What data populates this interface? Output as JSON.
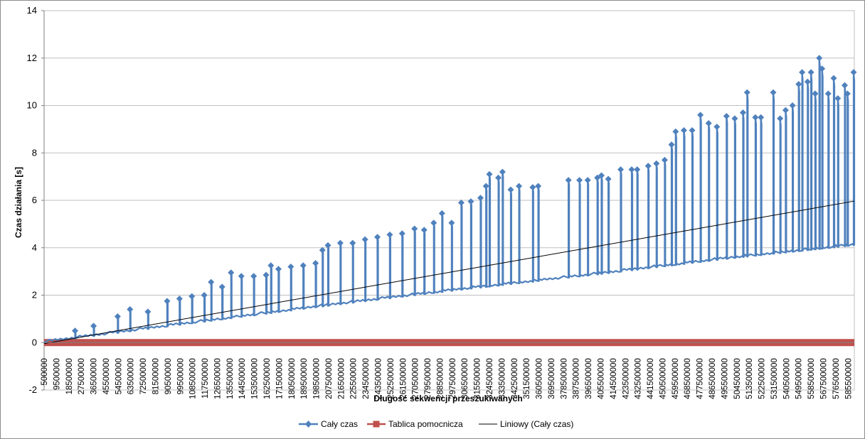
{
  "chart_data": {
    "type": "line",
    "xlabel": "Długość sekwencji przeszukiwanych",
    "ylabel": "Czas działania [s]",
    "ylim": [
      -2,
      14
    ],
    "yticks": [
      -2,
      0,
      2,
      4,
      6,
      8,
      10,
      12,
      14
    ],
    "x_start": 500000,
    "x_step": 500000,
    "x_count": 1180,
    "x_label_step": 9000000,
    "grid": "horizontal",
    "legend_position": "bottom",
    "colors": {
      "cały_czas": "#4f81bd",
      "tablica": "#c0504d",
      "trend": "#000000"
    },
    "series": [
      {
        "name": "Cały czas",
        "marker": "diamond",
        "baseline": [
          [
            500000,
            0.0
          ],
          [
            100000000,
            0.75
          ],
          [
            200000000,
            1.5
          ],
          [
            300000000,
            2.2
          ],
          [
            400000000,
            2.85
          ],
          [
            500000000,
            3.55
          ],
          [
            589500000,
            4.1
          ]
        ],
        "spikes": [
          [
            23000000,
            0.5
          ],
          [
            36500000,
            0.7
          ],
          [
            54000000,
            1.1
          ],
          [
            63000000,
            1.4
          ],
          [
            76000000,
            1.3
          ],
          [
            90000000,
            1.75
          ],
          [
            99000000,
            1.85
          ],
          [
            108000000,
            1.95
          ],
          [
            117000000,
            2.0
          ],
          [
            122000000,
            2.55
          ],
          [
            130000000,
            2.35
          ],
          [
            136500000,
            2.95
          ],
          [
            144000000,
            2.8
          ],
          [
            153000000,
            2.8
          ],
          [
            162000000,
            2.85
          ],
          [
            165500000,
            3.25
          ],
          [
            171000000,
            3.1
          ],
          [
            180000000,
            3.2
          ],
          [
            189000000,
            3.25
          ],
          [
            198000000,
            3.35
          ],
          [
            203000000,
            3.9
          ],
          [
            207000000,
            4.1
          ],
          [
            216000000,
            4.2
          ],
          [
            225000000,
            4.2
          ],
          [
            234000000,
            4.35
          ],
          [
            243000000,
            4.45
          ],
          [
            252000000,
            4.55
          ],
          [
            261000000,
            4.6
          ],
          [
            270000000,
            4.8
          ],
          [
            277000000,
            4.75
          ],
          [
            284000000,
            5.05
          ],
          [
            290000000,
            5.45
          ],
          [
            297000000,
            5.05
          ],
          [
            304000000,
            5.9
          ],
          [
            311000000,
            5.95
          ],
          [
            318000000,
            6.1
          ],
          [
            322000000,
            6.6
          ],
          [
            324500000,
            7.1
          ],
          [
            331000000,
            6.95
          ],
          [
            334000000,
            7.2
          ],
          [
            340000000,
            6.45
          ],
          [
            346000000,
            6.6
          ],
          [
            356000000,
            6.55
          ],
          [
            360000000,
            6.6
          ],
          [
            382000000,
            6.85
          ],
          [
            390000000,
            6.85
          ],
          [
            396000000,
            6.85
          ],
          [
            403000000,
            6.95
          ],
          [
            406000000,
            7.05
          ],
          [
            411000000,
            6.9
          ],
          [
            420000000,
            7.3
          ],
          [
            428000000,
            7.3
          ],
          [
            432000000,
            7.3
          ],
          [
            440000000,
            7.45
          ],
          [
            446000000,
            7.55
          ],
          [
            452000000,
            7.7
          ],
          [
            457000000,
            8.35
          ],
          [
            460000000,
            8.9
          ],
          [
            466000000,
            8.95
          ],
          [
            472000000,
            8.95
          ],
          [
            478000000,
            9.6
          ],
          [
            484000000,
            9.25
          ],
          [
            490000000,
            9.1
          ],
          [
            497000000,
            9.55
          ],
          [
            503000000,
            9.45
          ],
          [
            509000000,
            9.7
          ],
          [
            512000000,
            10.55
          ],
          [
            518000000,
            9.5
          ],
          [
            522000000,
            9.5
          ],
          [
            531000000,
            10.55
          ],
          [
            536000000,
            9.45
          ],
          [
            540000000,
            9.8
          ],
          [
            545000000,
            10.0
          ],
          [
            549500000,
            10.9
          ],
          [
            552000000,
            11.4
          ],
          [
            556000000,
            11.0
          ],
          [
            558500000,
            11.4
          ],
          [
            561500000,
            10.5
          ],
          [
            564500000,
            12.0
          ],
          [
            566500000,
            11.55
          ],
          [
            571000000,
            10.5
          ],
          [
            575000000,
            11.15
          ],
          [
            578000000,
            10.3
          ],
          [
            583000000,
            10.85
          ],
          [
            585000000,
            10.5
          ],
          [
            589500000,
            11.4
          ]
        ]
      },
      {
        "name": "Tablica pomocnicza",
        "marker": "square",
        "values_constant": 0.0
      },
      {
        "name": "Liniowy (Cały czas)",
        "type": "trendline",
        "slope_per_unit": 1.02e-08,
        "intercept": -0.05
      }
    ]
  }
}
